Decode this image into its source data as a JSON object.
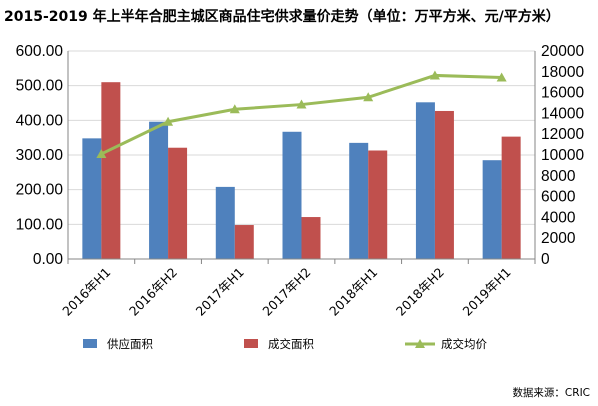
{
  "chart_data": {
    "type": "bar",
    "title": "2015-2019 年上半年合肥主城区商品住宅供求量价走势（单位：万平方米、元/平方米）",
    "categories": [
      "2016年H1",
      "2016年H2",
      "2017年H1",
      "2017年H2",
      "2018年H1",
      "2018年H2",
      "2019年H1"
    ],
    "series": [
      {
        "name": "供应面积",
        "type": "bar",
        "axis": "left",
        "color": "#4f81bd",
        "values": [
          348,
          396,
          208,
          367,
          335,
          452,
          285
        ]
      },
      {
        "name": "成交面积",
        "type": "bar",
        "axis": "left",
        "color": "#c0504d",
        "values": [
          510,
          321,
          98,
          121,
          313,
          427,
          353
        ]
      },
      {
        "name": "成交均价",
        "type": "line",
        "axis": "right",
        "color": "#9bbb59",
        "marker": "triangle",
        "values": [
          10100,
          13200,
          14400,
          14850,
          15550,
          17650,
          17450
        ]
      }
    ],
    "y_left": {
      "min": 0,
      "max": 600,
      "step": 100,
      "ticks": [
        "0.00",
        "100.00",
        "200.00",
        "300.00",
        "400.00",
        "500.00",
        "600.00"
      ]
    },
    "y_right": {
      "min": 0,
      "max": 20000,
      "step": 2000,
      "ticks": [
        "0",
        "2000",
        "4000",
        "6000",
        "8000",
        "10000",
        "12000",
        "14000",
        "16000",
        "18000",
        "20000"
      ]
    },
    "grid": true,
    "legend_position": "bottom",
    "source": "数据来源：CRIC"
  }
}
